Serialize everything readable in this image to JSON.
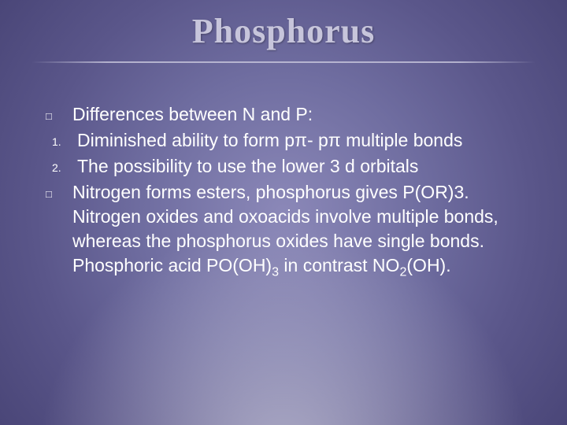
{
  "slide": {
    "title": "Phosphorus",
    "title_color": "#c7c5db",
    "title_fontsize": 44,
    "background_gradient": [
      "#8b88b8",
      "#6f6da0",
      "#5a568a",
      "#4a4678"
    ],
    "body_color": "#ffffff",
    "body_fontsize": 23,
    "bullets": {
      "square_glyph": "□",
      "intro": "Differences between N and P:",
      "num1_marker": "1.",
      "num1_text": "Diminished ability to form pπ- pπ multiple bonds",
      "num2_marker": "2.",
      "num2_text": "The possibility to use the lower 3 d orbitals",
      "para_prefix": "Nitrogen forms esters, phosphorus gives P(OR)3. Nitrogen oxides and oxoacids involve multiple bonds, whereas the phosphorus oxides have single bonds. Phosphoric acid PO(OH)",
      "para_sub1": "3",
      "para_mid": " in contrast NO",
      "para_sub2": "2",
      "para_suffix": "(OH)."
    }
  }
}
